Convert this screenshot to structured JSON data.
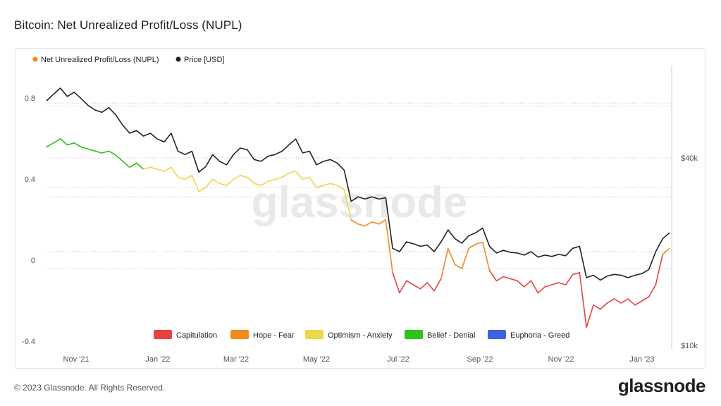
{
  "page": {
    "title": "Bitcoin: Net Unrealized Profit/Loss (NUPL)",
    "copyright": "© 2023 Glassnode. All Rights Reserved.",
    "brand": "glassnode",
    "watermark": "glassnode"
  },
  "colors": {
    "capitulation": "#e8423f",
    "hope_fear": "#f28a1e",
    "optimism_anxiety": "#efd64a",
    "belief_denial": "#2ec21b",
    "euphoria_greed": "#3d63de",
    "price": "#222222"
  },
  "chart_data": {
    "type": "line",
    "title": "Bitcoin: Net Unrealized Profit/Loss (NUPL)",
    "legend": [
      {
        "label": "Net Unrealized Profit/Loss (NUPL)",
        "color": "#f28a1e"
      },
      {
        "label": "Price [USD]",
        "color": "#222222"
      }
    ],
    "legend_position": "top-left",
    "zones": [
      {
        "label": "Capitulation",
        "color": "#e8423f"
      },
      {
        "label": "Hope - Fear",
        "color": "#f28a1e"
      },
      {
        "label": "Optimism - Anxiety",
        "color": "#efd64a"
      },
      {
        "label": "Belief - Denial",
        "color": "#2ec21b"
      },
      {
        "label": "Euphoria - Greed",
        "color": "#3d63de"
      }
    ],
    "zones_position": "bottom-center",
    "x_ticks": [
      "Nov '21",
      "Jan '22",
      "Mar '22",
      "May '22",
      "Jul '22",
      "Sep '22",
      "Nov '22",
      "Jan '23"
    ],
    "y_left": {
      "ticks": [
        "0.8",
        "0.4",
        "0",
        "-0.4"
      ],
      "values": [
        0.8,
        0.4,
        0,
        -0.4
      ],
      "range": [
        -0.4,
        0.86
      ]
    },
    "y_right": {
      "ticks": [
        "$40k",
        "$10k"
      ],
      "values": [
        40000,
        10000
      ],
      "scale": "log"
    },
    "grid": "horizontal dotted",
    "x_range": [
      0,
      900
    ],
    "series": [
      {
        "name": "Price [USD]",
        "axis": "right",
        "x": [
          0,
          10,
          20,
          30,
          40,
          50,
          60,
          70,
          80,
          90,
          100,
          110,
          120,
          130,
          140,
          150,
          160,
          170,
          180,
          190,
          200,
          210,
          220,
          230,
          240,
          250,
          260,
          270,
          280,
          290,
          300,
          310,
          320,
          330,
          340,
          350,
          360,
          370,
          380,
          390,
          400,
          410,
          420,
          430,
          440,
          450,
          460,
          470,
          480,
          490,
          500,
          510,
          520,
          530,
          540,
          550,
          560,
          570,
          580,
          590,
          600,
          610,
          620,
          630,
          640,
          650,
          660,
          670,
          680,
          690,
          700,
          710,
          720,
          730,
          740,
          750,
          760,
          770,
          780,
          790,
          800,
          810,
          820,
          830,
          840,
          850,
          860,
          870,
          880,
          890,
          900
        ],
        "values": [
          61000,
          64000,
          67000,
          63000,
          65000,
          62000,
          59000,
          57000,
          56000,
          58000,
          55000,
          51000,
          48000,
          49000,
          47000,
          48000,
          46000,
          45000,
          48000,
          42000,
          41000,
          42000,
          36000,
          37500,
          41000,
          39000,
          38000,
          41000,
          43000,
          42500,
          39500,
          39000,
          40500,
          41000,
          42000,
          44000,
          46000,
          41500,
          42000,
          38000,
          39000,
          39500,
          38500,
          36500,
          29000,
          30000,
          29500,
          30000,
          29500,
          29800,
          20500,
          20000,
          21500,
          21200,
          20800,
          21000,
          20000,
          21500,
          23500,
          22000,
          21300,
          22500,
          23000,
          23800,
          20800,
          19800,
          20200,
          19900,
          19800,
          19500,
          20000,
          19200,
          19500,
          19300,
          19600,
          19400,
          20500,
          20800,
          16500,
          16800,
          16200,
          16700,
          16900,
          16800,
          16500,
          16800,
          17000,
          17500,
          20000,
          22000,
          23000
        ]
      },
      {
        "name": "Net Unrealized Profit/Loss (NUPL)",
        "axis": "left",
        "x": [
          0,
          10,
          20,
          30,
          40,
          50,
          60,
          70,
          80,
          90,
          100,
          110,
          120,
          130,
          140,
          150,
          160,
          170,
          180,
          190,
          200,
          210,
          220,
          230,
          240,
          250,
          260,
          270,
          280,
          290,
          300,
          310,
          320,
          330,
          340,
          350,
          360,
          370,
          380,
          390,
          400,
          410,
          420,
          430,
          440,
          450,
          460,
          470,
          480,
          490,
          500,
          510,
          520,
          530,
          540,
          550,
          560,
          570,
          580,
          590,
          600,
          610,
          620,
          630,
          640,
          650,
          660,
          670,
          680,
          690,
          700,
          710,
          720,
          730,
          740,
          750,
          760,
          770,
          780,
          790,
          800,
          810,
          820,
          830,
          840,
          850,
          860,
          870,
          880,
          890,
          900
        ],
        "values": [
          0.6,
          0.62,
          0.64,
          0.61,
          0.62,
          0.6,
          0.59,
          0.58,
          0.57,
          0.58,
          0.56,
          0.53,
          0.5,
          0.52,
          0.49,
          0.5,
          0.49,
          0.48,
          0.5,
          0.45,
          0.44,
          0.46,
          0.38,
          0.4,
          0.44,
          0.42,
          0.41,
          0.44,
          0.46,
          0.45,
          0.42,
          0.41,
          0.43,
          0.44,
          0.45,
          0.47,
          0.48,
          0.44,
          0.45,
          0.4,
          0.41,
          0.42,
          0.41,
          0.39,
          0.24,
          0.22,
          0.21,
          0.23,
          0.22,
          0.24,
          -0.02,
          -0.12,
          -0.06,
          -0.08,
          -0.1,
          -0.07,
          -0.11,
          -0.05,
          0.1,
          0.02,
          0.0,
          0.1,
          0.12,
          0.13,
          -0.01,
          -0.06,
          -0.04,
          -0.05,
          -0.06,
          -0.09,
          -0.06,
          -0.12,
          -0.09,
          -0.08,
          -0.07,
          -0.08,
          -0.03,
          -0.02,
          -0.29,
          -0.18,
          -0.2,
          -0.17,
          -0.15,
          -0.17,
          -0.15,
          -0.18,
          -0.16,
          -0.14,
          -0.08,
          0.07,
          0.1
        ]
      }
    ]
  }
}
